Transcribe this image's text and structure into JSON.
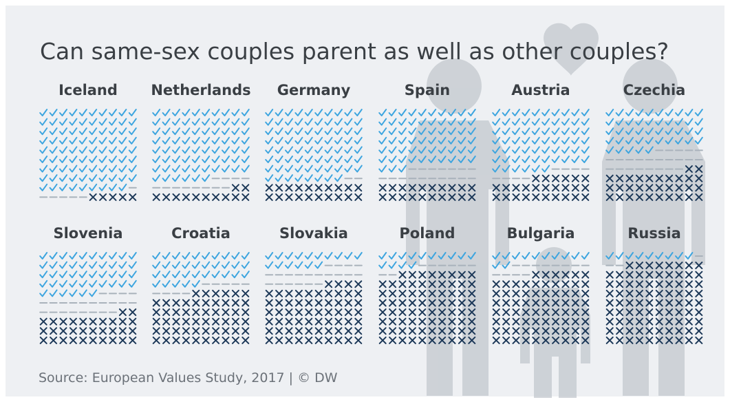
{
  "chart_data": {
    "type": "waffle",
    "title": "Can same-sex couples parent as well as other couples?",
    "source": "Source: European Values Study, 2017 | © DW",
    "categories": [
      "Iceland",
      "Netherlands",
      "Germany",
      "Spain",
      "Austria",
      "Czechia",
      "Slovenia",
      "Croatia",
      "Slovakia",
      "Poland",
      "Bulgaria",
      "Russia"
    ],
    "series": [
      {
        "color": "#3da5df",
        "values": [
          89,
          76,
          78,
          63,
          66,
          45,
          46,
          35,
          16,
          14,
          12,
          9
        ]
      },
      {
        "color": "#a9b2bb",
        "values": [
          6,
          12,
          2,
          17,
          8,
          23,
          22,
          9,
          20,
          8,
          12,
          3
        ]
      },
      {
        "color": "#1c3858",
        "values": [
          5,
          12,
          20,
          20,
          26,
          32,
          32,
          56,
          64,
          78,
          76,
          88
        ]
      }
    ]
  }
}
